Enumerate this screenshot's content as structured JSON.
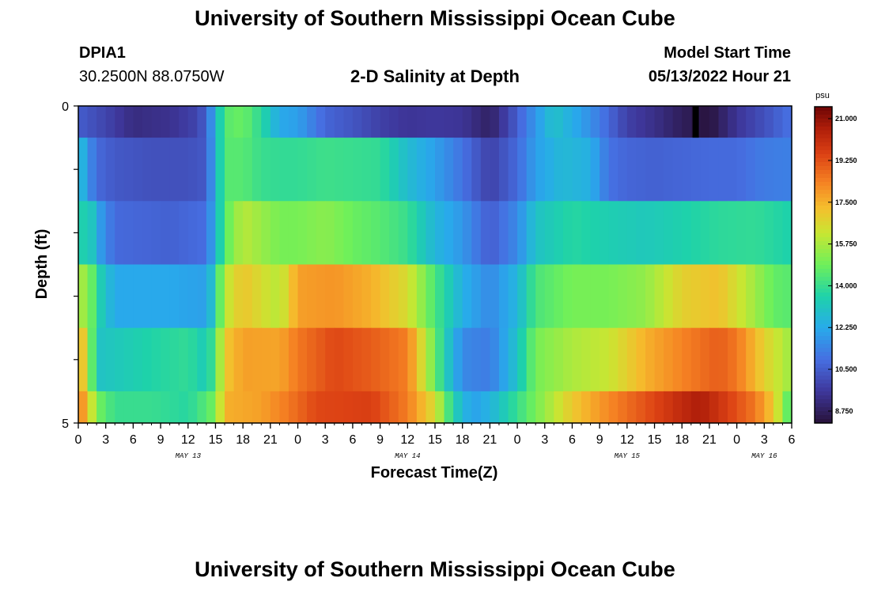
{
  "header": {
    "title": "University of Southern Mississippi Ocean Cube",
    "station_id": "DPIA1",
    "coordinates": "30.2500N  88.0750W",
    "subtitle": "2-D Salinity at Depth",
    "model_start_label": "Model Start Time",
    "model_start_value": "05/13/2022 Hour 21"
  },
  "footer": {
    "title": "University of Southern Mississippi Ocean Cube"
  },
  "chart_data": {
    "type": "heatmap",
    "title": "2-D Salinity at Depth",
    "xlabel": "Forecast Time(Z)",
    "ylabel": "Depth (ft)",
    "ylim": [
      0,
      5
    ],
    "y_tick_labels": [
      "0",
      "5"
    ],
    "x_start_hour": 0,
    "x_end_hour": 78,
    "x_ticks": [
      {
        "h": 0,
        "label": "0"
      },
      {
        "h": 3,
        "label": "3"
      },
      {
        "h": 6,
        "label": "6"
      },
      {
        "h": 9,
        "label": "9"
      },
      {
        "h": 12,
        "label": "12"
      },
      {
        "h": 15,
        "label": "15"
      },
      {
        "h": 18,
        "label": "18"
      },
      {
        "h": 21,
        "label": "21"
      },
      {
        "h": 24,
        "label": "0"
      },
      {
        "h": 27,
        "label": "3"
      },
      {
        "h": 30,
        "label": "6"
      },
      {
        "h": 33,
        "label": "9"
      },
      {
        "h": 36,
        "label": "12"
      },
      {
        "h": 39,
        "label": "15"
      },
      {
        "h": 42,
        "label": "18"
      },
      {
        "h": 45,
        "label": "21"
      },
      {
        "h": 48,
        "label": "0"
      },
      {
        "h": 51,
        "label": "3"
      },
      {
        "h": 54,
        "label": "6"
      },
      {
        "h": 57,
        "label": "9"
      },
      {
        "h": 60,
        "label": "12"
      },
      {
        "h": 63,
        "label": "15"
      },
      {
        "h": 66,
        "label": "18"
      },
      {
        "h": 69,
        "label": "21"
      },
      {
        "h": 72,
        "label": "0"
      },
      {
        "h": 75,
        "label": "3"
      },
      {
        "h": 78,
        "label": "6"
      }
    ],
    "date_labels": [
      {
        "h": 12,
        "label": "MAY 13"
      },
      {
        "h": 36,
        "label": "MAY 14"
      },
      {
        "h": 60,
        "label": "MAY 15"
      },
      {
        "h": 75,
        "label": "MAY 16"
      }
    ],
    "model_start_marker_hour": 67,
    "colorbar": {
      "unit": "psu",
      "min": 8.25,
      "max": 21.5,
      "tick_labels": [
        "21.000",
        "19.250",
        "17.500",
        "15.750",
        "14.000",
        "12.250",
        "10.500",
        "8.750"
      ],
      "tick_values": [
        21.0,
        19.25,
        17.5,
        15.75,
        14.0,
        12.25,
        10.5,
        8.75
      ]
    },
    "layers": [
      {
        "depth_range": [
          0.0,
          0.5
        ],
        "keyframes": [
          [
            0,
            10.5
          ],
          [
            1,
            10.3
          ],
          [
            3,
            9.9
          ],
          [
            6,
            9.2
          ],
          [
            10,
            9.4
          ],
          [
            13,
            9.9
          ],
          [
            14,
            10.6
          ],
          [
            15,
            12.5
          ],
          [
            16,
            14.5
          ],
          [
            18,
            14.8
          ],
          [
            20,
            13.8
          ],
          [
            22,
            12.2
          ],
          [
            24,
            12.0
          ],
          [
            27,
            10.7
          ],
          [
            30,
            10.3
          ],
          [
            33,
            9.8
          ],
          [
            36,
            9.5
          ],
          [
            39,
            9.6
          ],
          [
            42,
            9.5
          ],
          [
            45,
            8.8
          ],
          [
            47,
            9.9
          ],
          [
            49,
            11.2
          ],
          [
            52,
            13.0
          ],
          [
            55,
            12.0
          ],
          [
            57,
            11.2
          ],
          [
            60,
            9.8
          ],
          [
            63,
            9.3
          ],
          [
            66,
            8.7
          ],
          [
            69,
            8.3
          ],
          [
            72,
            9.5
          ],
          [
            75,
            10.2
          ],
          [
            78,
            11.0
          ]
        ]
      },
      {
        "depth_range": [
          0.5,
          1.5
        ],
        "keyframes": [
          [
            0,
            13.1
          ],
          [
            1,
            11.8
          ],
          [
            2,
            10.8
          ],
          [
            4,
            10.4
          ],
          [
            8,
            10.2
          ],
          [
            12,
            10.2
          ],
          [
            14,
            10.4
          ],
          [
            15,
            12.5
          ],
          [
            16,
            14.5
          ],
          [
            18,
            14.5
          ],
          [
            20,
            14.0
          ],
          [
            22,
            13.9
          ],
          [
            24,
            13.9
          ],
          [
            27,
            14.1
          ],
          [
            30,
            14.0
          ],
          [
            33,
            13.9
          ],
          [
            36,
            12.8
          ],
          [
            39,
            12.0
          ],
          [
            42,
            11.0
          ],
          [
            45,
            9.8
          ],
          [
            48,
            10.8
          ],
          [
            50,
            12.0
          ],
          [
            53,
            12.7
          ],
          [
            56,
            12.4
          ],
          [
            58,
            11.0
          ],
          [
            60,
            10.7
          ],
          [
            63,
            10.6
          ],
          [
            66,
            10.7
          ],
          [
            69,
            10.8
          ],
          [
            72,
            10.8
          ],
          [
            75,
            11.2
          ],
          [
            78,
            11.3
          ]
        ]
      },
      {
        "depth_range": [
          1.5,
          2.5
        ],
        "keyframes": [
          [
            0,
            12.9
          ],
          [
            1,
            14.0
          ],
          [
            2,
            12.2
          ],
          [
            4,
            10.8
          ],
          [
            10,
            10.6
          ],
          [
            14,
            10.9
          ],
          [
            15,
            12.5
          ],
          [
            16,
            14.5
          ],
          [
            18,
            16.0
          ],
          [
            22,
            15.0
          ],
          [
            24,
            15.0
          ],
          [
            27,
            15.3
          ],
          [
            30,
            14.8
          ],
          [
            33,
            14.5
          ],
          [
            36,
            14.0
          ],
          [
            39,
            12.6
          ],
          [
            42,
            11.8
          ],
          [
            45,
            10.5
          ],
          [
            48,
            11.5
          ],
          [
            50,
            13.0
          ],
          [
            54,
            13.7
          ],
          [
            58,
            13.4
          ],
          [
            62,
            13.2
          ],
          [
            66,
            13.5
          ],
          [
            70,
            13.8
          ],
          [
            74,
            13.9
          ],
          [
            78,
            13.5
          ]
        ]
      },
      {
        "depth_range": [
          2.5,
          3.5
        ],
        "keyframes": [
          [
            0,
            15.5
          ],
          [
            1,
            15.7
          ],
          [
            2,
            13.7
          ],
          [
            4,
            12.2
          ],
          [
            10,
            12.2
          ],
          [
            14,
            12.0
          ],
          [
            15,
            13.5
          ],
          [
            16,
            16.0
          ],
          [
            18,
            17.1
          ],
          [
            22,
            15.9
          ],
          [
            24,
            17.8
          ],
          [
            28,
            18.0
          ],
          [
            32,
            17.5
          ],
          [
            36,
            16.5
          ],
          [
            39,
            14.3
          ],
          [
            42,
            12.4
          ],
          [
            45,
            11.5
          ],
          [
            48,
            12.6
          ],
          [
            50,
            14.3
          ],
          [
            54,
            15.0
          ],
          [
            58,
            15.0
          ],
          [
            62,
            15.4
          ],
          [
            66,
            16.8
          ],
          [
            70,
            17.2
          ],
          [
            73,
            16.0
          ],
          [
            76,
            14.7
          ],
          [
            78,
            14.5
          ]
        ]
      },
      {
        "depth_range": [
          3.5,
          4.5
        ],
        "keyframes": [
          [
            0,
            17.8
          ],
          [
            1,
            16.2
          ],
          [
            2,
            13.0
          ],
          [
            4,
            13.2
          ],
          [
            8,
            13.6
          ],
          [
            12,
            13.9
          ],
          [
            14,
            13.2
          ],
          [
            15,
            14.5
          ],
          [
            16,
            17.0
          ],
          [
            18,
            17.8
          ],
          [
            22,
            17.7
          ],
          [
            24,
            18.5
          ],
          [
            28,
            19.4
          ],
          [
            32,
            19.0
          ],
          [
            36,
            18.4
          ],
          [
            38,
            16.0
          ],
          [
            40,
            13.5
          ],
          [
            42,
            11.5
          ],
          [
            45,
            11.2
          ],
          [
            48,
            13.0
          ],
          [
            50,
            15.0
          ],
          [
            54,
            15.8
          ],
          [
            58,
            16.2
          ],
          [
            62,
            17.5
          ],
          [
            66,
            18.3
          ],
          [
            70,
            19.0
          ],
          [
            72,
            18.5
          ],
          [
            75,
            16.8
          ],
          [
            78,
            15.5
          ]
        ]
      },
      {
        "depth_range": [
          4.5,
          5.0
        ],
        "keyframes": [
          [
            0,
            18.5
          ],
          [
            1,
            17.3
          ],
          [
            2,
            15.0
          ],
          [
            4,
            14.0
          ],
          [
            8,
            14.0
          ],
          [
            12,
            13.7
          ],
          [
            14,
            14.5
          ],
          [
            15,
            15.0
          ],
          [
            16,
            17.5
          ],
          [
            20,
            17.8
          ],
          [
            23,
            18.5
          ],
          [
            26,
            19.4
          ],
          [
            32,
            19.6
          ],
          [
            36,
            18.4
          ],
          [
            39,
            16.5
          ],
          [
            41,
            13.5
          ],
          [
            43,
            12.0
          ],
          [
            45,
            12.5
          ],
          [
            47,
            13.5
          ],
          [
            50,
            15.0
          ],
          [
            54,
            17.0
          ],
          [
            58,
            18.2
          ],
          [
            62,
            19.2
          ],
          [
            66,
            20.2
          ],
          [
            68,
            20.6
          ],
          [
            71,
            19.6
          ],
          [
            74,
            18.5
          ],
          [
            76,
            17.0
          ],
          [
            78,
            14.0
          ]
        ]
      }
    ]
  }
}
